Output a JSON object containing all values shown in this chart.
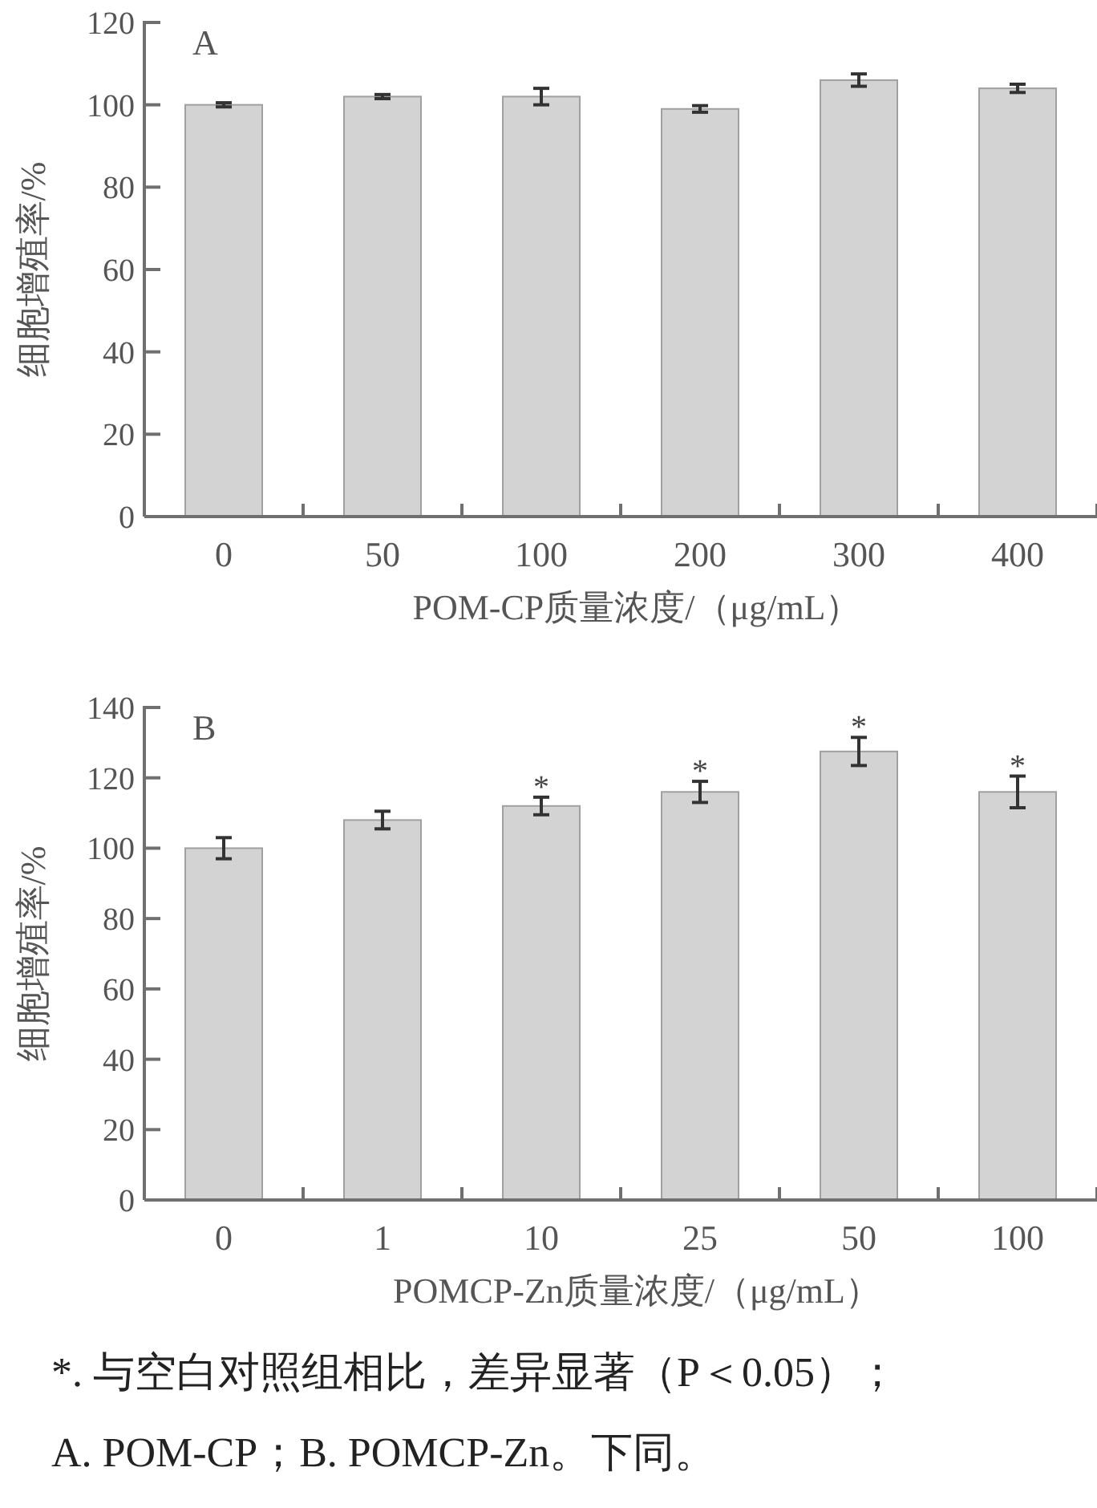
{
  "chart_data": [
    {
      "type": "bar",
      "xlabel": "POM-CP质量浓度/（μg/mL）",
      "ylabel": "细胞增殖率/%",
      "categories": [
        "0",
        "50",
        "100",
        "200",
        "300",
        "400"
      ],
      "values": [
        100,
        102,
        102,
        99,
        106,
        104
      ],
      "errors": [
        0.5,
        0.5,
        2,
        0.8,
        1.5,
        1
      ],
      "color": "#d3d3d3",
      "ylim": [
        0,
        120
      ],
      "yticks": [
        0,
        20,
        40,
        60,
        80,
        100,
        120
      ],
      "annotations": [
        "A"
      ]
    },
    {
      "type": "bar",
      "xlabel": "POMCP-Zn质量浓度/（μg/mL）",
      "ylabel": "细胞增殖率/%",
      "categories": [
        "0",
        "1",
        "10",
        "25",
        "50",
        "100"
      ],
      "values": [
        100,
        108,
        112,
        116,
        127.5,
        116
      ],
      "errors": [
        3,
        2.5,
        2.5,
        3,
        4,
        4.5
      ],
      "color": "#d3d3d3",
      "ylim": [
        0,
        140
      ],
      "yticks": [
        0,
        20,
        40,
        60,
        80,
        100,
        120,
        140
      ],
      "annotations": [
        "B",
        {
          "text": "*",
          "x": "10",
          "y": 114.5
        },
        {
          "text": "*",
          "x": "25",
          "y": 119
        },
        {
          "text": "*",
          "x": "50",
          "y": 131.5
        },
        {
          "text": "*",
          "x": "100",
          "y": 120.5
        },
        "*. 与空白对照组相比，差异显著（P＜0.05）；",
        "A. POM-CP；B. POMCP-Zn。下同。"
      ]
    }
  ]
}
